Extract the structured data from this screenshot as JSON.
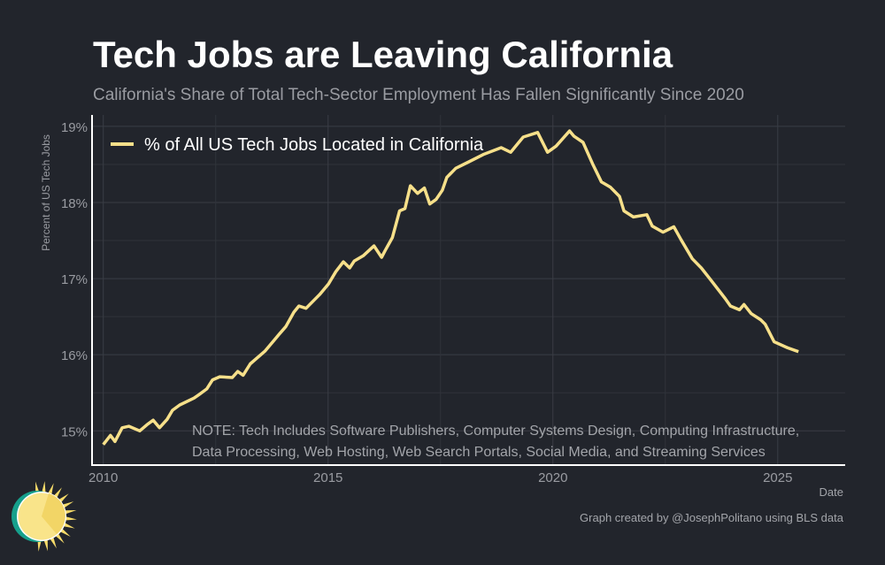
{
  "header": {
    "title": "Tech Jobs are Leaving California",
    "subtitle": "California's Share of Total Tech-Sector Employment Has Fallen Significantly Since 2020"
  },
  "chart_data": {
    "type": "line",
    "title": "Tech Jobs are Leaving California",
    "subtitle": "California's Share of Total Tech-Sector Employment Has Fallen Significantly Since 2020",
    "xlabel": "Date",
    "ylabel": "Percent of US Tech Jobs",
    "xlim": [
      2009.75,
      2026.5
    ],
    "ylim": [
      14.55,
      19.15
    ],
    "x_ticks": [
      2010,
      2015,
      2020,
      2025
    ],
    "x_tick_labels": [
      "2010",
      "2015",
      "2020",
      "2025"
    ],
    "y_ticks": [
      15,
      16,
      17,
      18,
      19
    ],
    "y_tick_labels": [
      "15%",
      "16%",
      "17%",
      "18%",
      "19%"
    ],
    "grid": true,
    "legend_position": "top-left",
    "color": "#f7e08a",
    "series": [
      {
        "name": "% of All US Tech Jobs Located in California",
        "points": [
          [
            2010.0,
            14.82
          ],
          [
            2010.16,
            14.94
          ],
          [
            2010.26,
            14.86
          ],
          [
            2010.42,
            15.04
          ],
          [
            2010.57,
            15.06
          ],
          [
            2010.81,
            15.0
          ],
          [
            2010.97,
            15.08
          ],
          [
            2011.11,
            15.14
          ],
          [
            2011.25,
            15.04
          ],
          [
            2011.42,
            15.15
          ],
          [
            2011.54,
            15.27
          ],
          [
            2011.7,
            15.34
          ],
          [
            2012.02,
            15.43
          ],
          [
            2012.14,
            15.48
          ],
          [
            2012.3,
            15.55
          ],
          [
            2012.43,
            15.67
          ],
          [
            2012.59,
            15.71
          ],
          [
            2012.87,
            15.7
          ],
          [
            2012.99,
            15.78
          ],
          [
            2013.11,
            15.73
          ],
          [
            2013.27,
            15.88
          ],
          [
            2013.6,
            16.05
          ],
          [
            2013.9,
            16.26
          ],
          [
            2014.06,
            16.37
          ],
          [
            2014.24,
            16.56
          ],
          [
            2014.35,
            16.64
          ],
          [
            2014.51,
            16.61
          ],
          [
            2014.81,
            16.79
          ],
          [
            2015.01,
            16.93
          ],
          [
            2015.17,
            17.09
          ],
          [
            2015.34,
            17.22
          ],
          [
            2015.48,
            17.14
          ],
          [
            2015.58,
            17.23
          ],
          [
            2015.78,
            17.3
          ],
          [
            2016.02,
            17.43
          ],
          [
            2016.19,
            17.28
          ],
          [
            2016.27,
            17.37
          ],
          [
            2016.43,
            17.54
          ],
          [
            2016.59,
            17.89
          ],
          [
            2016.71,
            17.92
          ],
          [
            2016.83,
            18.22
          ],
          [
            2016.99,
            18.12
          ],
          [
            2017.14,
            18.19
          ],
          [
            2017.26,
            17.98
          ],
          [
            2017.4,
            18.04
          ],
          [
            2017.54,
            18.16
          ],
          [
            2017.64,
            18.33
          ],
          [
            2017.84,
            18.45
          ],
          [
            2018.15,
            18.54
          ],
          [
            2018.45,
            18.63
          ],
          [
            2018.85,
            18.72
          ],
          [
            2019.06,
            18.66
          ],
          [
            2019.34,
            18.86
          ],
          [
            2019.66,
            18.92
          ],
          [
            2019.88,
            18.66
          ],
          [
            2020.07,
            18.74
          ],
          [
            2020.37,
            18.94
          ],
          [
            2020.47,
            18.87
          ],
          [
            2020.67,
            18.79
          ],
          [
            2020.88,
            18.51
          ],
          [
            2021.08,
            18.27
          ],
          [
            2021.28,
            18.2
          ],
          [
            2021.48,
            18.08
          ],
          [
            2021.58,
            17.89
          ],
          [
            2021.79,
            17.81
          ],
          [
            2022.09,
            17.84
          ],
          [
            2022.21,
            17.69
          ],
          [
            2022.45,
            17.61
          ],
          [
            2022.69,
            17.68
          ],
          [
            2022.85,
            17.51
          ],
          [
            2023.1,
            17.26
          ],
          [
            2023.3,
            17.14
          ],
          [
            2023.5,
            16.99
          ],
          [
            2023.83,
            16.74
          ],
          [
            2023.95,
            16.64
          ],
          [
            2024.15,
            16.59
          ],
          [
            2024.25,
            16.66
          ],
          [
            2024.41,
            16.54
          ],
          [
            2024.62,
            16.46
          ],
          [
            2024.72,
            16.4
          ],
          [
            2024.92,
            16.17
          ],
          [
            2025.22,
            16.09
          ],
          [
            2025.46,
            16.04
          ]
        ]
      }
    ],
    "annotations": [
      "NOTE: Tech Includes Software Publishers, Computer Systems Design, Computing Infrastructure,",
      "Data Processing, Web Hosting, Web Search Portals, Social Media, and Streaming Services"
    ]
  },
  "footer": {
    "credit": "Graph created by @JosephPolitano using BLS data"
  },
  "colors": {
    "background": "#22252c",
    "line": "#f7e08a",
    "text_muted": "#9a9ca2",
    "logo_teal": "#16a08c"
  }
}
